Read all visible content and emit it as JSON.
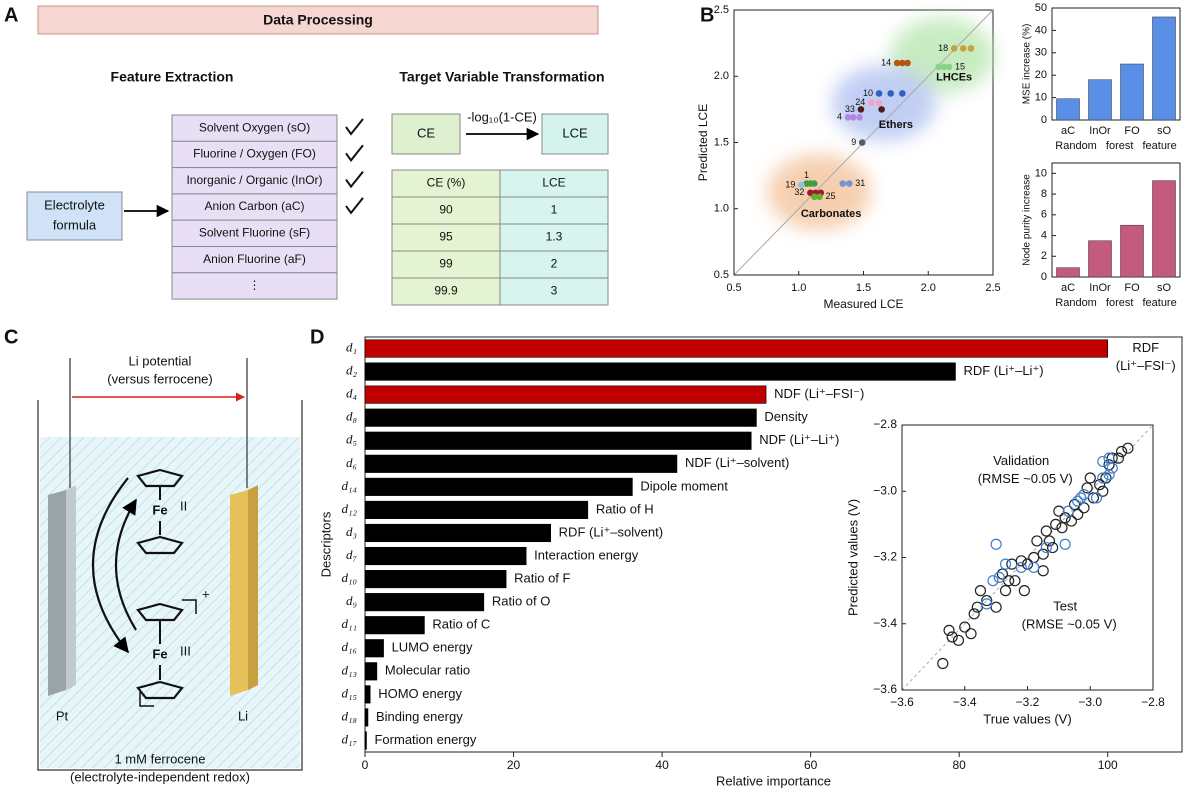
{
  "panels": [
    "A",
    "B",
    "C",
    "D"
  ],
  "processing": {
    "title": "Data Processing",
    "feature_heading": "Feature Extraction",
    "input": [
      "Electrolyte",
      "formula"
    ],
    "features": [
      "Solvent Oxygen (sO)",
      "Fluorine / Oxygen (FO)",
      "Inorganic / Organic (InOr)",
      "Anion Carbon (aC)",
      "Solvent Fluorine (sF)",
      "Anion Fluorine (aF)",
      "⋮"
    ],
    "checked": [
      true,
      true,
      true,
      true,
      false,
      false,
      false
    ],
    "target_heading": "Target Variable Transformation",
    "transform": {
      "from": "CE",
      "op": "-log₁₀(1-CE)",
      "to": "LCE"
    },
    "table": {
      "header": [
        "CE (%)",
        "LCE"
      ],
      "rows": [
        [
          90,
          1
        ],
        [
          95,
          1.3
        ],
        [
          99,
          2
        ],
        [
          99.9,
          3
        ]
      ]
    }
  },
  "cell": {
    "potential": [
      "Li potential",
      "(versus ferrocene)"
    ],
    "electrodes": [
      "Pt",
      "Li"
    ],
    "metal": "Fe",
    "states": [
      "II",
      "III"
    ],
    "charge": "+",
    "caption": [
      "1 mM ferrocene",
      "(electrolyte-independent redox)"
    ]
  },
  "chart_data": [
    {
      "type": "scatter",
      "xlabel": "Measured LCE",
      "ylabel": "Predicted LCE",
      "xlim": [
        0.5,
        2.5
      ],
      "ylim": [
        0.5,
        2.5
      ],
      "xticks": [
        0.5,
        {
          "value": 1,
          "label": "1.0"
        },
        1.5,
        {
          "value": 2,
          "label": "2.0"
        },
        2.5
      ],
      "yticks": [
        0.5,
        {
          "value": 1,
          "label": "1.0"
        },
        1.5,
        {
          "value": 2,
          "label": "2.0"
        },
        2.5
      ],
      "diagonal": true,
      "groups": [
        {
          "label": "LHCEs",
          "color": "#bfe8b8",
          "x": 2.2,
          "y": 1.99
        },
        {
          "label": "Ethers",
          "color": "#b7c6f2",
          "x": 1.75,
          "y": 1.63
        },
        {
          "label": "Carbonates",
          "color": "#f4c7a3",
          "x": 1.25,
          "y": 0.96
        }
      ],
      "series": [
        {
          "name": "18",
          "color": "#c9a13c",
          "label_side": "left",
          "x": [
            2.2,
            2.27,
            2.33
          ],
          "values": [
            2.21,
            2.21,
            2.21
          ]
        },
        {
          "name": "14",
          "color": "#b5560f",
          "label_side": "left",
          "x": [
            1.76,
            1.8,
            1.84
          ],
          "values": [
            2.1,
            2.1,
            2.1
          ]
        },
        {
          "name": "15",
          "color": "#86d486",
          "label_side": "right",
          "x": [
            2.08,
            2.12,
            2.16
          ],
          "values": [
            2.07,
            2.07,
            2.07
          ]
        },
        {
          "name": "10",
          "color": "#2f5fbf",
          "label_side": "left",
          "x": [
            1.62,
            1.71,
            1.8
          ],
          "values": [
            1.87,
            1.87,
            1.87
          ]
        },
        {
          "name": "24",
          "color": "#f2a3c4",
          "label_side": "left",
          "x": [
            1.56,
            1.62
          ],
          "values": [
            1.8,
            1.8
          ]
        },
        {
          "name": "33",
          "color": "#4a1e1e",
          "label_side": "left",
          "x": [
            1.48,
            1.64
          ],
          "values": [
            1.75,
            1.75
          ]
        },
        {
          "name": "4",
          "color": "#b487e6",
          "label_side": "left",
          "x": [
            1.38,
            1.42,
            1.47
          ],
          "values": [
            1.69,
            1.69,
            1.69
          ]
        },
        {
          "name": "9",
          "color": "#4f6060",
          "label_side": "left",
          "x": [
            1.49
          ],
          "values": [
            1.5
          ]
        },
        {
          "name": "1",
          "color": "#3f9f3f",
          "label_side": "top",
          "x": [
            1.06,
            1.09,
            1.12
          ],
          "values": [
            1.19,
            1.19,
            1.19
          ]
        },
        {
          "name": "19",
          "color": "#86c4e6",
          "label_side": "left",
          "x": [
            1.02
          ],
          "values": [
            1.18
          ]
        },
        {
          "name": "31",
          "color": "#7893d3",
          "label_side": "right",
          "x": [
            1.34,
            1.39
          ],
          "values": [
            1.19,
            1.19
          ]
        },
        {
          "name": "32",
          "color": "#a3172e",
          "label_side": "left",
          "x": [
            1.09,
            1.13,
            1.17
          ],
          "values": [
            1.12,
            1.12,
            1.12
          ]
        },
        {
          "name": "25",
          "color": "#5fb32f",
          "label_side": "right",
          "x": [
            1.12,
            1.16
          ],
          "values": [
            1.09,
            1.09
          ]
        }
      ]
    },
    {
      "type": "bar",
      "ylabel": "MSE increase (%)",
      "xlabel": "Random forest feature",
      "categories": [
        "aC",
        "InOr",
        "FO",
        "sO"
      ],
      "values": [
        9.5,
        18,
        25,
        46
      ],
      "color": "#5b8ee6",
      "ylim": [
        0,
        50
      ],
      "yticks": [
        0,
        10,
        20,
        30,
        40,
        50
      ]
    },
    {
      "type": "bar",
      "ylabel": "Node purity increase",
      "xlabel": "Random forest feature",
      "categories": [
        "aC",
        "InOr",
        "FO",
        "sO"
      ],
      "values": [
        0.9,
        3.5,
        5,
        9.3
      ],
      "color": "#c45a80",
      "ylim": [
        0,
        11
      ],
      "yticks": [
        0,
        2,
        4,
        6,
        8,
        10
      ]
    },
    {
      "type": "barh",
      "xlabel": "Relative importance",
      "ylabel": "Descriptors",
      "categories": [
        "d₁",
        "d₂",
        "d₄",
        "d₈",
        "d₅",
        "d₆",
        "d₁₄",
        "d₁₂",
        "d₃",
        "d₇",
        "d₁₀",
        "d₉",
        "d₁₁",
        "d₁₆",
        "d₁₃",
        "d₁₅",
        "d₁₈",
        "d₁₇"
      ],
      "values": [
        100,
        79.5,
        54,
        52.7,
        52,
        42,
        36,
        30,
        25,
        21.7,
        19,
        16,
        8,
        2.5,
        1.6,
        0.7,
        0.4,
        0.2
      ],
      "colors": [
        "#c00000",
        "#000000",
        "#c00000",
        "#000000",
        "#000000",
        "#000000",
        "#000000",
        "#000000",
        "#000000",
        "#000000",
        "#000000",
        "#000000",
        "#000000",
        "#000000",
        "#000000",
        "#000000",
        "#000000",
        "#000000"
      ],
      "bar_labels": [
        [
          "RDF",
          "(Li⁺–FSI⁻)"
        ],
        [
          "RDF (Li⁺–Li⁺)"
        ],
        [
          "NDF (Li⁺–FSI⁻)"
        ],
        [
          "Density"
        ],
        [
          "NDF (Li⁺–Li⁺)"
        ],
        [
          "NDF (Li⁺–solvent)"
        ],
        [
          "Dipole moment"
        ],
        [
          "Ratio of H"
        ],
        [
          "RDF (Li⁺–solvent)"
        ],
        [
          "Interaction energy"
        ],
        [
          "Ratio of F"
        ],
        [
          "Ratio of O"
        ],
        [
          "Ratio of C"
        ],
        [
          "LUMO energy"
        ],
        [
          "Molecular ratio"
        ],
        [
          "HOMO energy"
        ],
        [
          "Binding energy"
        ],
        [
          "Formation energy"
        ]
      ],
      "xlim": [
        0,
        110
      ],
      "xticks": [
        0,
        20,
        40,
        60,
        80,
        100
      ]
    },
    {
      "type": "scatter",
      "xlabel": "True values (V)",
      "ylabel": "Predicted values (V)",
      "xlim": [
        -3.6,
        -2.8
      ],
      "ylim": [
        -3.6,
        -2.8
      ],
      "marker": "open",
      "diagonal": true,
      "xticks": [
        {
          "value": -3.6,
          "label": "−3.6"
        },
        {
          "value": -3.4,
          "label": "−3.4"
        },
        {
          "value": -3.2,
          "label": "−3.2"
        },
        {
          "value": -3.0,
          "label": "−3.0"
        },
        {
          "value": -2.8,
          "label": "−2.8"
        }
      ],
      "yticks": [
        {
          "value": -3.6,
          "label": "−3.6"
        },
        {
          "value": -3.4,
          "label": "−3.4"
        },
        {
          "value": -3.2,
          "label": "−3.2"
        },
        {
          "value": -3.0,
          "label": "−3.0"
        },
        {
          "value": -2.8,
          "label": "−2.8"
        }
      ],
      "series": [
        {
          "name": "Test",
          "note": "(RMSE ~0.05 V)",
          "label_at": [
            -3.08,
            -3.35
          ],
          "color": "#222222",
          "x": [
            -3.47,
            -3.45,
            -3.44,
            -3.42,
            -3.4,
            -3.38,
            -3.37,
            -3.36,
            -3.33,
            -3.35,
            -3.3,
            -3.28,
            -3.26,
            -3.27,
            -3.24,
            -3.22,
            -3.2,
            -3.18,
            -3.21,
            -3.17,
            -3.15,
            -3.14,
            -3.12,
            -3.11,
            -3.09,
            -3.08,
            -3.06,
            -3.05,
            -3.04,
            -3.02,
            -3.01,
            -2.99,
            -2.97,
            -2.96,
            -2.95,
            -2.94,
            -2.93,
            -2.91,
            -2.9,
            -2.88,
            -3.1,
            -3.15,
            -3.25,
            -3.0,
            -3.13
          ],
          "values": [
            -3.52,
            -3.42,
            -3.44,
            -3.45,
            -3.41,
            -3.43,
            -3.37,
            -3.35,
            -3.33,
            -3.3,
            -3.35,
            -3.25,
            -3.27,
            -3.3,
            -3.27,
            -3.21,
            -3.22,
            -3.2,
            -3.3,
            -3.15,
            -3.19,
            -3.12,
            -3.17,
            -3.1,
            -3.11,
            -3.08,
            -3.09,
            -3.04,
            -3.07,
            -3.05,
            -2.99,
            -3.02,
            -2.98,
            -3.0,
            -2.96,
            -2.92,
            -2.9,
            -2.9,
            -2.88,
            -2.87,
            -3.06,
            -3.24,
            -3.22,
            -2.96,
            -3.15
          ]
        },
        {
          "name": "Validation",
          "note": "(RMSE ~0.05 V)",
          "label_at": [
            -3.22,
            -2.91
          ],
          "color": "#3a7fd0",
          "x": [
            -3.3,
            -3.33,
            -3.31,
            -3.29,
            -3.27,
            -3.22,
            -3.18,
            -3.14,
            -3.08,
            -3.07,
            -3.04,
            -3.03,
            -3.02,
            -2.98,
            -2.96,
            -2.94,
            -2.93,
            -2.96,
            -2.94
          ],
          "values": [
            -3.16,
            -3.34,
            -3.27,
            -3.26,
            -3.22,
            -3.23,
            -3.23,
            -3.17,
            -3.16,
            -3.06,
            -3.03,
            -3.02,
            -3.01,
            -3.02,
            -2.96,
            -2.95,
            -2.93,
            -2.91,
            -2.9
          ]
        }
      ]
    }
  ]
}
